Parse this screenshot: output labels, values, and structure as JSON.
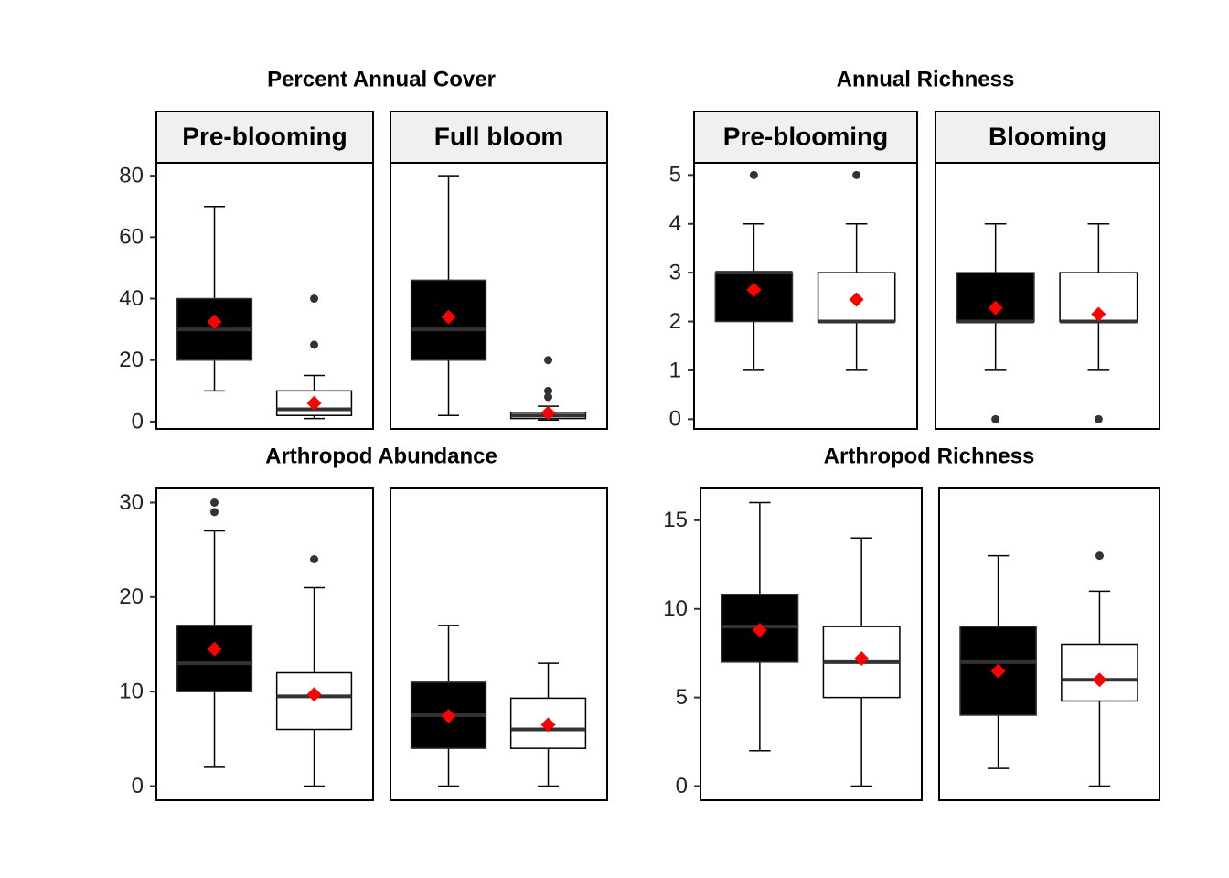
{
  "chart_data": [
    {
      "type": "box",
      "title": "Percent Annual Cover",
      "ylim": [
        -2.4,
        84.2
      ],
      "yticks": [
        0,
        20,
        40,
        60,
        80
      ],
      "mean_color": "#ff0000",
      "facets": [
        {
          "label": "Pre-blooming",
          "boxes": [
            {
              "fill": "#000000",
              "whisker_low": 10,
              "q1": 20,
              "median": 30,
              "q3": 40,
              "whisker_high": 70,
              "mean": 32.5,
              "outliers": []
            },
            {
              "fill": "#ffffff",
              "whisker_low": 1,
              "q1": 2,
              "median": 4,
              "q3": 10,
              "whisker_high": 15,
              "mean": 6,
              "outliers": [
                25,
                40
              ]
            }
          ]
        },
        {
          "label": "Full bloom",
          "boxes": [
            {
              "fill": "#000000",
              "whisker_low": 2,
              "q1": 20,
              "median": 30,
              "q3": 46,
              "whisker_high": 80,
              "mean": 34,
              "outliers": []
            },
            {
              "fill": "#ffffff",
              "whisker_low": 0.5,
              "q1": 1,
              "median": 2,
              "q3": 3,
              "whisker_high": 5,
              "mean": 2.8,
              "outliers": [
                8,
                10,
                20
              ]
            }
          ]
        }
      ]
    },
    {
      "type": "box",
      "title": "Annual Richness",
      "ylim": [
        -0.2,
        5.25
      ],
      "yticks": [
        0,
        1,
        2,
        3,
        4,
        5
      ],
      "mean_color": "#ff0000",
      "facets": [
        {
          "label": "Pre-blooming",
          "boxes": [
            {
              "fill": "#000000",
              "whisker_low": 1,
              "q1": 2,
              "median": 3,
              "q3": 3,
              "whisker_high": 4,
              "mean": 2.65,
              "outliers": [
                5
              ]
            },
            {
              "fill": "#ffffff",
              "whisker_low": 1,
              "q1": 2,
              "median": 2,
              "q3": 3,
              "whisker_high": 4,
              "mean": 2.45,
              "outliers": [
                5
              ]
            }
          ]
        },
        {
          "label": "Blooming",
          "boxes": [
            {
              "fill": "#000000",
              "whisker_low": 1,
              "q1": 2,
              "median": 2,
              "q3": 3,
              "whisker_high": 4,
              "mean": 2.28,
              "outliers": [
                0
              ]
            },
            {
              "fill": "#ffffff",
              "whisker_low": 1,
              "q1": 2,
              "median": 2,
              "q3": 3,
              "whisker_high": 4,
              "mean": 2.15,
              "outliers": [
                0
              ]
            }
          ]
        }
      ]
    },
    {
      "type": "box",
      "title": "Arthropod Abundance",
      "ylim": [
        -1.5,
        31.5
      ],
      "yticks": [
        0,
        10,
        20,
        30
      ],
      "mean_color": "#ff0000",
      "facets": [
        {
          "boxes": [
            {
              "fill": "#000000",
              "whisker_low": 2,
              "q1": 10,
              "median": 13,
              "q3": 17,
              "whisker_high": 27,
              "mean": 14.5,
              "outliers": [
                29,
                30
              ]
            },
            {
              "fill": "#ffffff",
              "whisker_low": 0,
              "q1": 6,
              "median": 9.5,
              "q3": 12,
              "whisker_high": 21,
              "mean": 9.7,
              "outliers": [
                24
              ]
            }
          ]
        },
        {
          "boxes": [
            {
              "fill": "#000000",
              "whisker_low": 0,
              "q1": 4,
              "median": 7.5,
              "q3": 11,
              "whisker_high": 17,
              "mean": 7.4,
              "outliers": []
            },
            {
              "fill": "#ffffff",
              "whisker_low": 0,
              "q1": 4,
              "median": 6,
              "q3": 9.3,
              "whisker_high": 13,
              "mean": 6.5,
              "outliers": []
            }
          ]
        }
      ]
    },
    {
      "type": "box",
      "title": "Arthropod Richness",
      "ylim": [
        -0.8,
        16.8
      ],
      "yticks": [
        0,
        5,
        10,
        15
      ],
      "mean_color": "#ff0000",
      "facets": [
        {
          "boxes": [
            {
              "fill": "#000000",
              "whisker_low": 2,
              "q1": 7,
              "median": 9,
              "q3": 10.8,
              "whisker_high": 16,
              "mean": 8.8,
              "outliers": []
            },
            {
              "fill": "#ffffff",
              "whisker_low": 0,
              "q1": 5,
              "median": 7,
              "q3": 9,
              "whisker_high": 14,
              "mean": 7.2,
              "outliers": []
            }
          ]
        },
        {
          "boxes": [
            {
              "fill": "#000000",
              "whisker_low": 1,
              "q1": 4,
              "median": 7,
              "q3": 9,
              "whisker_high": 13,
              "mean": 6.5,
              "outliers": []
            },
            {
              "fill": "#ffffff",
              "whisker_low": 0,
              "q1": 4.8,
              "median": 6,
              "q3": 8,
              "whisker_high": 11,
              "mean": 6,
              "outliers": [
                13
              ]
            }
          ]
        }
      ]
    }
  ]
}
